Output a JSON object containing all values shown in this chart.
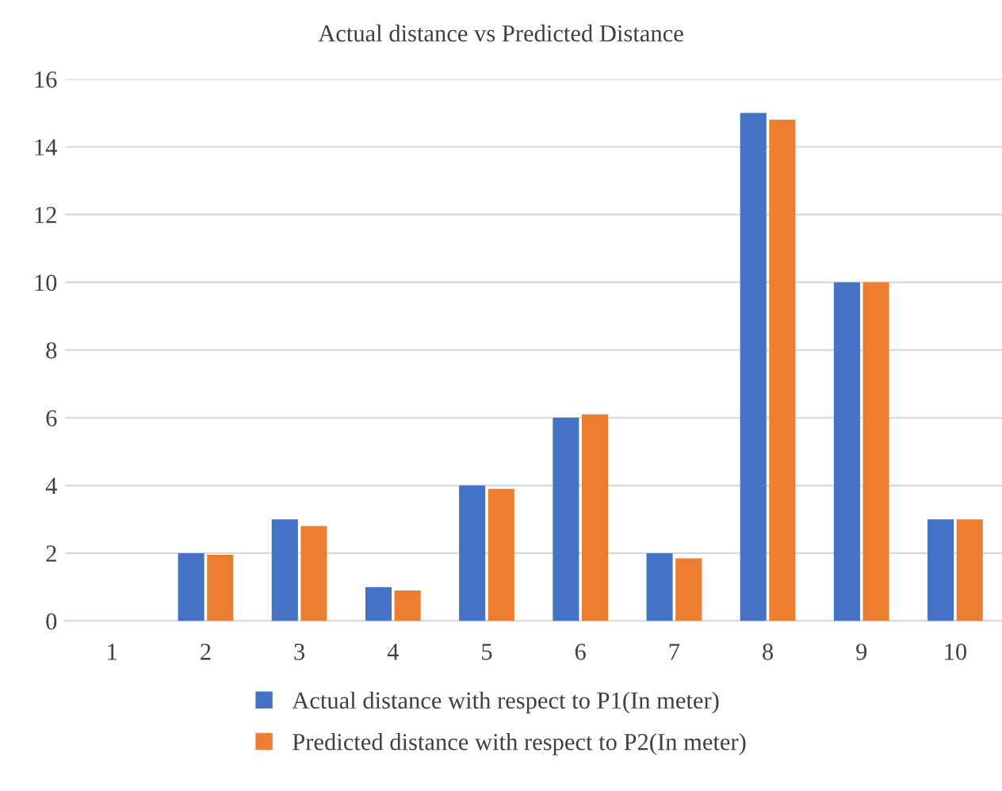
{
  "chart_data": {
    "type": "bar",
    "title": "Actual distance vs Predicted Distance",
    "categories": [
      "1",
      "2",
      "3",
      "4",
      "5",
      "6",
      "7",
      "8",
      "9",
      "10"
    ],
    "series": [
      {
        "name": "Actual distance with respect to P1(In meter)",
        "color": "#4472c4",
        "values": [
          0,
          2,
          3,
          1,
          4,
          6,
          2,
          15,
          10,
          3
        ]
      },
      {
        "name": "Predicted distance with respect to P2(In meter)",
        "color": "#ed7d31",
        "values": [
          0,
          1.95,
          2.8,
          0.9,
          3.9,
          6.1,
          1.85,
          14.8,
          10,
          3
        ]
      }
    ],
    "ylim": [
      0,
      16
    ],
    "yticks": [
      0,
      2,
      4,
      6,
      8,
      10,
      12,
      14,
      16
    ],
    "grid": "y",
    "legend": "bottom"
  }
}
